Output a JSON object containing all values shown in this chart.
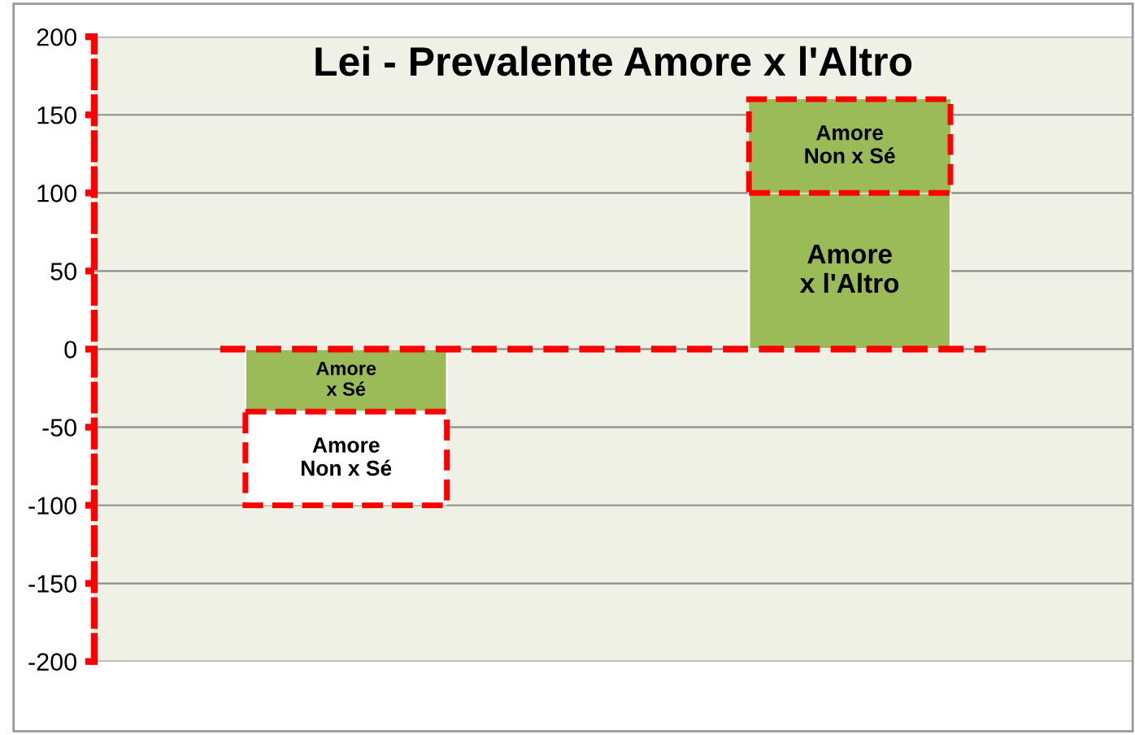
{
  "chart_data": {
    "type": "bar",
    "title": "Lei - Prevalente Amore x l'Altro",
    "categories": [
      null,
      null
    ],
    "stacked": true,
    "series": [
      {
        "name": "Amore x Sé",
        "color": "#9bbb59",
        "values": [
          -40,
          null
        ]
      },
      {
        "name": "Amore x l'Altro",
        "color": "#9bbb59",
        "values": [
          null,
          100
        ]
      },
      {
        "name": "Amore Non x Sé",
        "colors": [
          "#ffffff",
          "#9bbb59"
        ],
        "values": [
          -60,
          60
        ],
        "line_style": "dashed"
      }
    ],
    "ylim": [
      -200,
      200
    ],
    "yticks": [
      -200,
      -150,
      -100,
      -50,
      0,
      50,
      100,
      150,
      200
    ],
    "grid": "y",
    "ref_lines": [
      {
        "axis": "y",
        "value": 0,
        "color": "#ff0000",
        "line_style": "dashed"
      }
    ]
  }
}
